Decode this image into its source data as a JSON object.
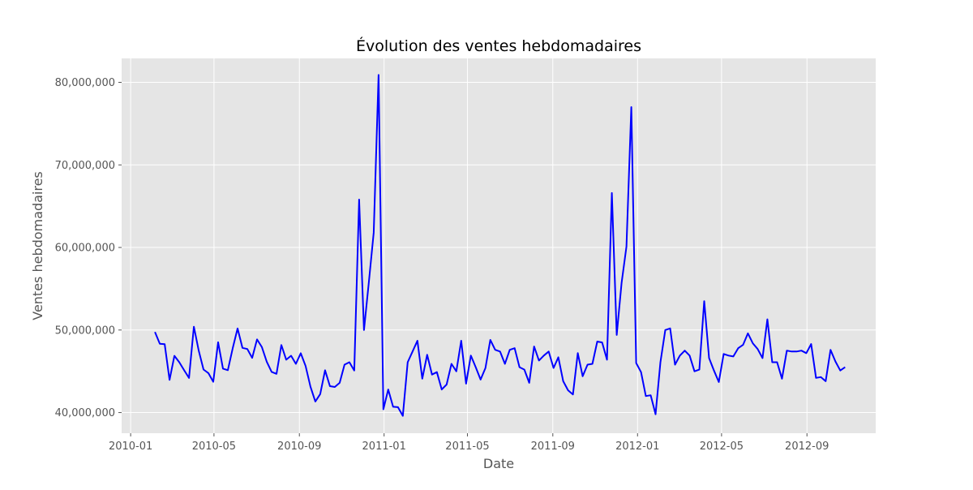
{
  "chart_data": {
    "type": "line",
    "title": "Évolution des ventes hebdomadaires",
    "xlabel": "Date",
    "ylabel": "Ventes hebdomadaires",
    "grid": true,
    "legend": "none",
    "colors": {
      "plot_background": "#e5e5e5",
      "grid": "#ffffff",
      "line": "#0000ff"
    },
    "x_ticks": [
      "2010-01",
      "2010-05",
      "2010-09",
      "2011-01",
      "2011-05",
      "2011-09",
      "2012-01",
      "2012-05",
      "2012-09"
    ],
    "y_ticks": [
      40000000,
      50000000,
      60000000,
      70000000,
      80000000
    ],
    "y_tick_labels": [
      "40,000,000",
      "50,000,000",
      "60,000,000",
      "70,000,000",
      "80,000,000"
    ],
    "xlim": [
      "2009-12-19",
      "2012-12-09"
    ],
    "ylim": [
      37500000,
      82900000
    ],
    "start_date": "2010-02-05",
    "interval_days": 7,
    "series": [
      {
        "values": [
          49750000,
          48340000,
          48280000,
          43960000,
          46870000,
          46100000,
          45130000,
          44190000,
          50400000,
          47490000,
          45210000,
          44780000,
          43730000,
          48520000,
          45320000,
          45140000,
          47790000,
          50190000,
          47840000,
          47700000,
          46630000,
          48860000,
          47930000,
          46160000,
          44930000,
          44690000,
          48180000,
          46400000,
          46880000,
          45900000,
          47190000,
          45640000,
          43130000,
          41340000,
          42240000,
          45130000,
          43200000,
          43100000,
          43600000,
          45800000,
          46100000,
          45100000,
          65800000,
          50000000,
          55800000,
          61800000,
          80900000,
          40400000,
          42800000,
          40700000,
          40650000,
          39600000,
          46100000,
          47400000,
          48700000,
          44100000,
          47000000,
          44600000,
          44900000,
          42800000,
          43400000,
          45900000,
          45000000,
          48700000,
          43500000,
          46900000,
          45500000,
          44000000,
          45400000,
          48800000,
          47600000,
          47400000,
          45900000,
          47600000,
          47800000,
          45500000,
          45200000,
          43600000,
          48000000,
          46300000,
          46900000,
          47400000,
          45400000,
          46700000,
          43800000,
          42700000,
          42200000,
          47200000,
          44400000,
          45800000,
          45900000,
          48600000,
          48500000,
          46400000,
          66600000,
          49400000,
          55700000,
          60100000,
          77000000,
          46000000,
          44900000,
          42000000,
          42100000,
          39800000,
          46100000,
          50000000,
          50200000,
          45800000,
          46900000,
          47500000,
          46900000,
          45000000,
          45200000,
          53500000,
          46600000,
          45100000,
          43700000,
          47100000,
          46900000,
          46800000,
          47800000,
          48200000,
          49600000,
          48400000,
          47700000,
          46600000,
          51300000,
          46100000,
          46100000,
          44100000,
          47500000,
          47400000,
          47400000,
          47500000,
          47200000,
          48300000,
          44200000,
          44300000,
          43800000,
          47600000,
          46200000,
          45100000,
          45500000
        ]
      }
    ]
  }
}
